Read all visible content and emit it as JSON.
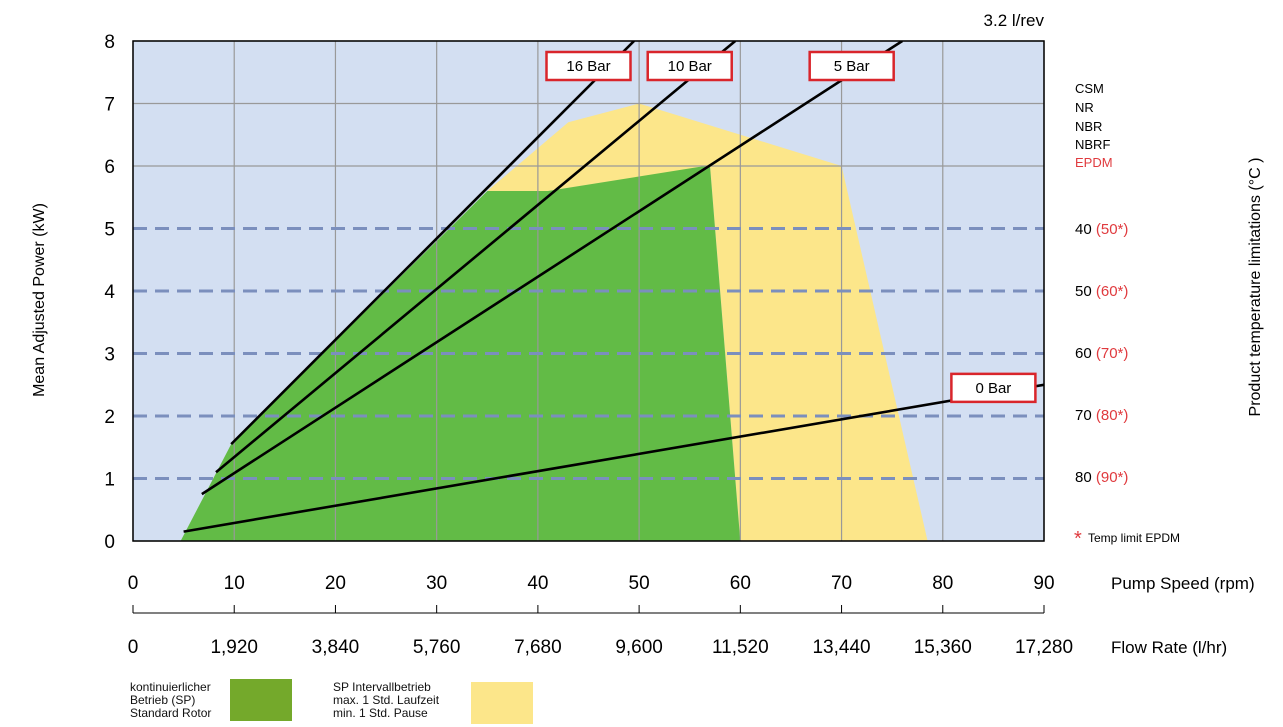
{
  "chart_data": {
    "type": "line",
    "top_label": "3.2 l/rev",
    "ylabel": "Mean Adjusted Power (kW)",
    "y2label": "Product temperature limitations (°C )",
    "x_axis_label": "Pump Speed (rpm)",
    "flow_axis_label": "Flow Rate (l/hr)",
    "xlim": [
      0,
      90
    ],
    "ylim": [
      0,
      8
    ],
    "x_ticks": [
      "0",
      "10",
      "20",
      "30",
      "40",
      "50",
      "60",
      "70",
      "80",
      "90"
    ],
    "y_ticks": [
      "0",
      "1",
      "2",
      "3",
      "4",
      "5",
      "6",
      "7",
      "8"
    ],
    "flow_ticks": [
      "0",
      "1,920",
      "3,840",
      "5,760",
      "7,680",
      "9,600",
      "11,520",
      "13,440",
      "15,360",
      "17,280"
    ],
    "grid": true,
    "pressure_lines": [
      {
        "name": "16 Bar",
        "points": [
          [
            9.7,
            1.55
          ],
          [
            49.5,
            8.0
          ]
        ],
        "label_at": [
          45,
          7.6
        ]
      },
      {
        "name": "10 Bar",
        "points": [
          [
            8.2,
            1.1
          ],
          [
            59.5,
            8.0
          ]
        ],
        "label_at": [
          55,
          7.6
        ]
      },
      {
        "name": "5 Bar",
        "points": [
          [
            6.8,
            0.75
          ],
          [
            76,
            8.0
          ]
        ],
        "label_at": [
          71,
          7.6
        ]
      },
      {
        "name": "0 Bar",
        "points": [
          [
            5,
            0.15
          ],
          [
            90,
            2.5
          ]
        ],
        "label_at": [
          85,
          2.45
        ]
      }
    ],
    "regions": [
      {
        "name": "SP Intervallbetrieb",
        "color": "#fce68a",
        "points": [
          [
            35,
            5.6
          ],
          [
            43,
            6.7
          ],
          [
            50,
            7.0
          ],
          [
            70,
            6.0
          ],
          [
            78.5,
            0
          ],
          [
            60,
            0
          ],
          [
            57,
            6.0
          ],
          [
            41,
            5.6
          ]
        ]
      },
      {
        "name": "kontinuierlicher Betrieb (SP)",
        "color": "#62bb46",
        "points": [
          [
            4.7,
            0
          ],
          [
            9.7,
            1.55
          ],
          [
            35,
            5.6
          ],
          [
            41,
            5.6
          ],
          [
            56.5,
            6.0
          ],
          [
            57,
            6.0
          ],
          [
            60,
            0
          ]
        ]
      }
    ],
    "temperature_lines": [
      {
        "y": 5,
        "label": "40",
        "epdm": "(50*)"
      },
      {
        "y": 4,
        "label": "50",
        "epdm": "(60*)"
      },
      {
        "y": 3,
        "label": "60",
        "epdm": "(70*)"
      },
      {
        "y": 2,
        "label": "70",
        "epdm": "(80*)"
      },
      {
        "y": 1,
        "label": "80",
        "epdm": "(90*)"
      }
    ],
    "materials": [
      "CSM",
      "NR",
      "NBR",
      "NBRF",
      "EPDM"
    ],
    "footnote_star": "*",
    "footnote_text": "Temp limit EPDM",
    "colors": {
      "background": "#d3dff2",
      "green": "#62bb46",
      "yellow": "#fce68a",
      "grid": "#999999",
      "dashed": "#7b8fbd",
      "label_border": "#d9252b",
      "red_text": "#e03a3e"
    }
  },
  "legend": {
    "green_label_lines": [
      "kontinuierlicher",
      "Betrieb (SP)",
      "Standard Rotor"
    ],
    "green_color": "#74a92b",
    "yellow_label_lines": [
      "SP Intervallbetrieb",
      "max. 1 Std. Laufzeit",
      "min. 1 Std. Pause"
    ],
    "yellow_color": "#fce68a"
  }
}
